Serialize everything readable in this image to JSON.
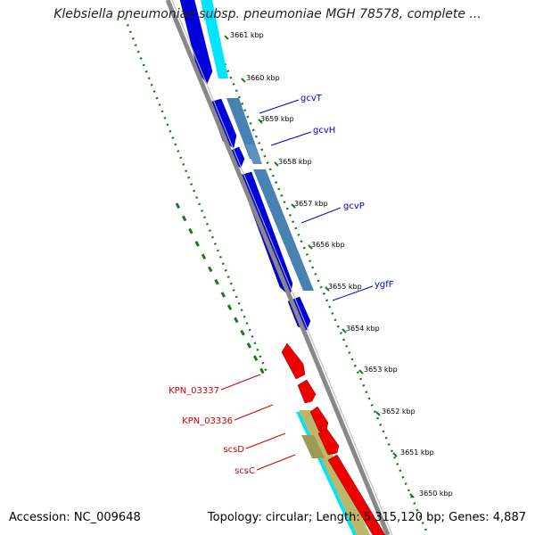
{
  "header": {
    "title": "Klebsiella pneumoniae subsp. pneumoniae MGH 78578, complete ..."
  },
  "footer": {
    "accession": "Accession: NC_009648",
    "topology": "Topology: circular; Length: 5,315,120 bp; Genes: 4,887"
  },
  "map": {
    "ticks": [
      "3661 kbp",
      "3660 kbp",
      "3659 kbp",
      "3658 kbp",
      "3657 kbp",
      "3656 kbp",
      "3655 kbp",
      "3654 kbp",
      "3653 kbp",
      "3652 kbp",
      "3651 kbp",
      "3650 kbp"
    ],
    "genes_right": [
      {
        "label": "gcvT",
        "color": "#0000cc"
      },
      {
        "label": "gcvH",
        "color": "#0000cc"
      },
      {
        "label": "gcvP",
        "color": "#0000cc"
      },
      {
        "label": "ygfF",
        "color": "#0000cc"
      }
    ],
    "genes_left": [
      {
        "label": "KPN_03337",
        "color": "#cc0000"
      },
      {
        "label": "KPN_03336",
        "color": "#cc0000"
      },
      {
        "label": "scsD",
        "color": "#cc0000"
      },
      {
        "label": "scsC",
        "color": "#cc0000"
      }
    ],
    "colors": {
      "backbone": "#888888",
      "forward_strand": "#0000dd",
      "reverse_strand": "#ee0000",
      "cds_steelblue": "#4682b4",
      "cds_khaki": "#bdb76b",
      "cds_cyan": "#00e5ff",
      "gc_ticks": "#1a7a1a"
    }
  }
}
